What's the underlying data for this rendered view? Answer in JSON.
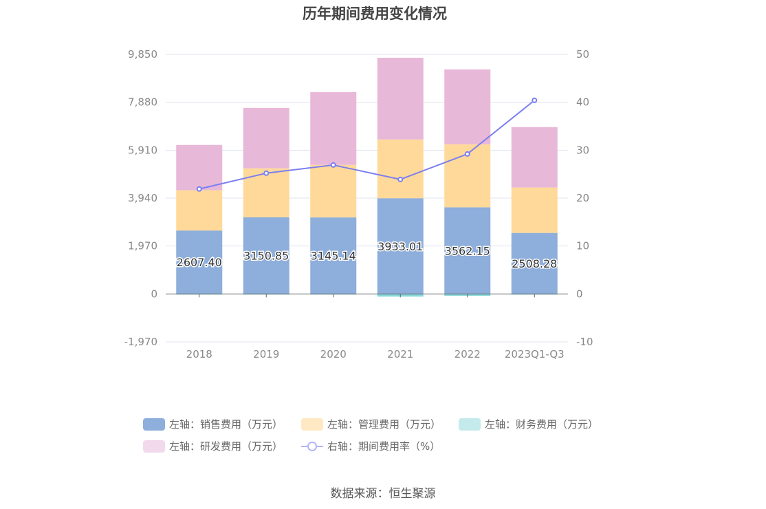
{
  "title": "历年期间费用变化情况",
  "source": "数据来源：恒生聚源",
  "chart_data": {
    "type": "bar",
    "stacked": true,
    "categories": [
      "2018",
      "2019",
      "2020",
      "2021",
      "2022",
      "2023Q1-Q3"
    ],
    "left_axis": {
      "ticks": [
        "9,850",
        "7,880",
        "5,910",
        "3,940",
        "1,970",
        "0",
        "-1,970"
      ],
      "range": [
        -1970,
        9850
      ]
    },
    "right_axis": {
      "ticks": [
        "50",
        "40",
        "30",
        "20",
        "10",
        "0",
        "-10"
      ],
      "range": [
        -10,
        50
      ]
    },
    "series": [
      {
        "name": "左轴：销售费用（万元）",
        "color": "#8eaedb",
        "values": [
          2607.4,
          3150.85,
          3145.14,
          3933.01,
          3562.15,
          2508.28
        ],
        "labels": [
          "2607.40",
          "3150.85",
          "3145.14",
          "3933.01",
          "3562.15",
          "2508.28"
        ]
      },
      {
        "name": "左轴：管理费用（万元）",
        "color": "#ffd999",
        "values": [
          1655,
          2014,
          2161,
          2417,
          2591,
          1867
        ]
      },
      {
        "name": "左轴：财务费用（万元）",
        "color": "#86d8dc",
        "values": [
          -5,
          -5,
          -5,
          -110,
          -75,
          -30
        ]
      },
      {
        "name": "左轴：研发费用（万元）",
        "color": "#e8b8d8",
        "values": [
          1863,
          2484,
          2992,
          3359,
          3076,
          2483
        ]
      },
      {
        "name": "右轴：期间费用率（%）",
        "type": "line",
        "color": "#7b7ff0",
        "values": [
          21.9,
          25.2,
          26.9,
          23.9,
          29.2,
          40.4
        ]
      }
    ],
    "legend_swatches": [
      "#8eaedb",
      "#ffe9c4",
      "#c4eaeb",
      "#f2d9ec"
    ]
  }
}
